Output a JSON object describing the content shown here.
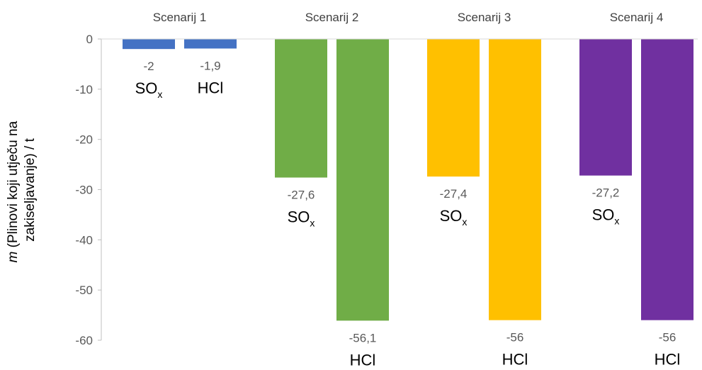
{
  "chart_data": {
    "type": "bar",
    "categories": [
      "Scenarij 1",
      "Scenarij 2",
      "Scenarij 3",
      "Scenarij 4"
    ],
    "series": [
      {
        "values": [
          -2,
          -27.6,
          -27.4,
          -27.2
        ],
        "labels": [
          "-2",
          "-27,6",
          "-27,4",
          "-27,2"
        ],
        "gas_label": "SO",
        "gas_sub": "x"
      },
      {
        "values": [
          -1.9,
          -56.1,
          -56,
          -56
        ],
        "labels": [
          "-1,9",
          "-56,1",
          "-56",
          "-56"
        ],
        "gas_label": "HCl",
        "gas_sub": ""
      }
    ],
    "colors": [
      "#4472C4",
      "#70AD47",
      "#FFC000",
      "#7030A0"
    ],
    "ylabel_italic": "m",
    "ylabel_line1": " (Plinovi koji utječu na",
    "ylabel_line2": "zakiseljavanje) / t",
    "yticks": [
      0,
      -10,
      -20,
      -30,
      -40,
      -50,
      -60
    ],
    "ylim": [
      -60,
      0
    ],
    "grid": false
  }
}
